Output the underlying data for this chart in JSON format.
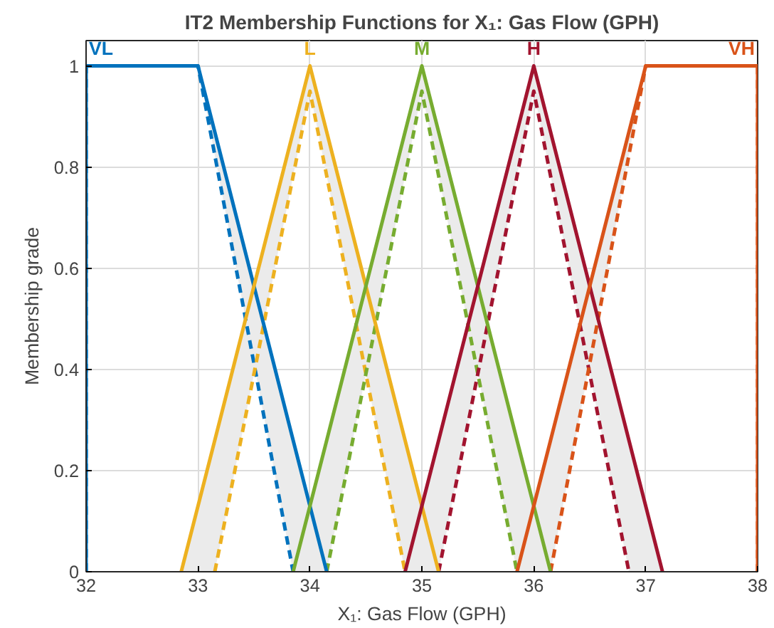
{
  "chart_data": {
    "type": "line",
    "title": "IT2 Membership Functions for X₁: Gas Flow (GPH)",
    "xlabel": "X₁: Gas Flow (GPH)",
    "ylabel": "Membership grade",
    "xlim": [
      32,
      38
    ],
    "xticks": [
      32,
      33,
      34,
      35,
      36,
      37,
      38
    ],
    "ylim": [
      0,
      1.05
    ],
    "yticks": [
      0,
      0.2,
      0.4,
      0.6,
      0.8,
      1
    ],
    "grid": true,
    "series": [
      {
        "name": "VL",
        "color": "#0072bd",
        "line_style": "solid",
        "x": [
          32,
          32,
          33,
          33.85,
          34.15
        ],
        "values": [
          0,
          1,
          1,
          0.26,
          0
        ],
        "lower": [
          0,
          1,
          1,
          0,
          0
        ],
        "upper": [
          0,
          1,
          1,
          0.26,
          0
        ]
      },
      {
        "color": "#0072bd",
        "line_style": "dashed",
        "x": [
          32,
          32,
          33,
          33.85
        ],
        "values": [
          0,
          1,
          1,
          0
        ]
      },
      {
        "name": "L",
        "color": "#edb120",
        "line_style": "solid",
        "x": [
          32.85,
          33.15,
          34,
          34.85,
          35.15
        ],
        "values": [
          0,
          0.26,
          1,
          0.26,
          0
        ],
        "lower": [
          0,
          0,
          0.95,
          0,
          0
        ],
        "upper": [
          0,
          0.26,
          1,
          0.26,
          0
        ]
      },
      {
        "color": "#edb120",
        "line_style": "dashed",
        "x": [
          33.15,
          34,
          34.85
        ],
        "values": [
          0,
          0.95,
          0
        ]
      },
      {
        "name": "M",
        "color": "#77ac30",
        "line_style": "solid",
        "x": [
          33.85,
          34.15,
          35,
          35.85,
          36.15
        ],
        "values": [
          0,
          0.26,
          1,
          0.26,
          0
        ],
        "lower": [
          0,
          0,
          0.95,
          0,
          0
        ],
        "upper": [
          0,
          0.26,
          1,
          0.26,
          0
        ]
      },
      {
        "color": "#77ac30",
        "line_style": "dashed",
        "x": [
          34.15,
          35,
          35.85
        ],
        "values": [
          0,
          0.95,
          0
        ]
      },
      {
        "name": "H",
        "color": "#a2142f",
        "line_style": "solid",
        "x": [
          34.85,
          35.15,
          36,
          36.85,
          37.15
        ],
        "values": [
          0,
          0.26,
          1,
          0.26,
          0
        ],
        "lower": [
          0,
          0,
          0.95,
          0,
          0
        ],
        "upper": [
          0,
          0.26,
          1,
          0.26,
          0
        ]
      },
      {
        "color": "#a2142f",
        "line_style": "dashed",
        "x": [
          35.15,
          36,
          36.85
        ],
        "values": [
          0,
          0.95,
          0
        ]
      },
      {
        "name": "VH",
        "color": "#d95319",
        "line_style": "solid",
        "x": [
          35.85,
          36.15,
          37,
          38,
          38
        ],
        "values": [
          0,
          0.26,
          1,
          1,
          0
        ],
        "lower": [
          0,
          0,
          1,
          1,
          0
        ],
        "upper": [
          0,
          0.26,
          1,
          1,
          0
        ]
      },
      {
        "color": "#d95319",
        "line_style": "dashed",
        "x": [
          36.15,
          37,
          38,
          38
        ],
        "values": [
          0,
          1,
          1,
          0
        ]
      }
    ]
  }
}
